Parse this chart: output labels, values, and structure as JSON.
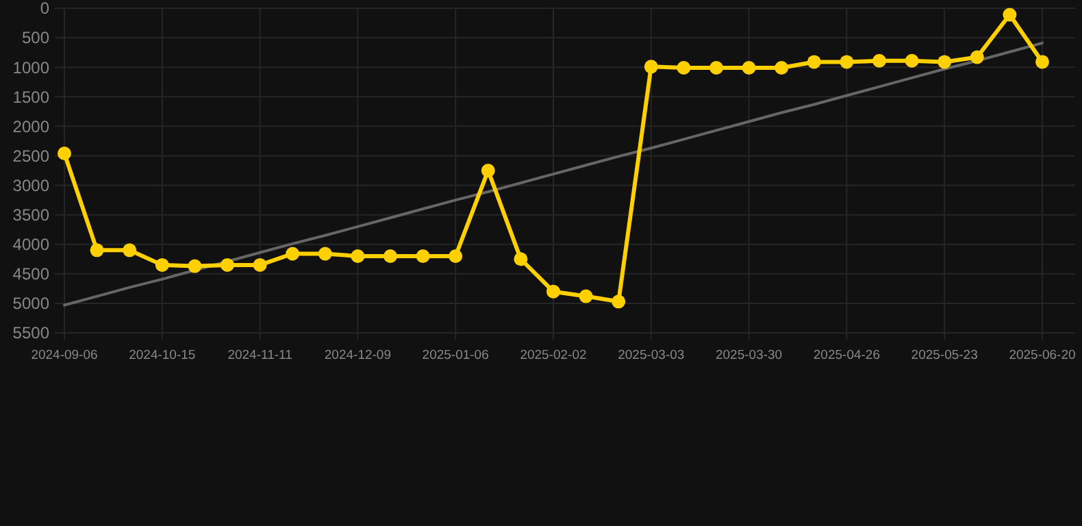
{
  "chart_data": {
    "type": "line",
    "categories": [
      "2024-09-06",
      null,
      null,
      "2024-10-15",
      null,
      null,
      "2024-11-11",
      null,
      null,
      "2024-12-09",
      null,
      null,
      "2025-01-06",
      null,
      null,
      "2025-02-02",
      null,
      null,
      "2025-03-03",
      null,
      null,
      "2025-03-30",
      null,
      null,
      "2025-04-26",
      null,
      null,
      "2025-05-23",
      null,
      null,
      "2025-06-20"
    ],
    "series": [
      {
        "color": "#ffd000",
        "marker": "circle",
        "values": [
          2460,
          4100,
          4100,
          4350,
          4370,
          4350,
          4350,
          4160,
          4160,
          4200,
          4200,
          4200,
          4200,
          2750,
          4250,
          4800,
          4880,
          4970,
          990,
          1010,
          1010,
          1010,
          1010,
          910,
          910,
          890,
          890,
          910,
          830,
          110,
          910
        ]
      },
      {
        "type": "line",
        "color": "#666666",
        "marker": "none",
        "values": [
          5030,
          4880,
          4730,
          4590,
          4440,
          4290,
          4140,
          3990,
          3850,
          3700,
          3550,
          3400,
          3250,
          3110,
          2960,
          2810,
          2660,
          2510,
          2370,
          2220,
          2070,
          1920,
          1770,
          1630,
          1480,
          1330,
          1180,
          1030,
          890,
          740,
          590
        ]
      }
    ],
    "ylim": [
      5500,
      0
    ],
    "yticks": [
      0,
      500,
      1000,
      1500,
      2000,
      2500,
      3000,
      3500,
      4000,
      4500,
      5000,
      5500
    ],
    "grid": true
  }
}
